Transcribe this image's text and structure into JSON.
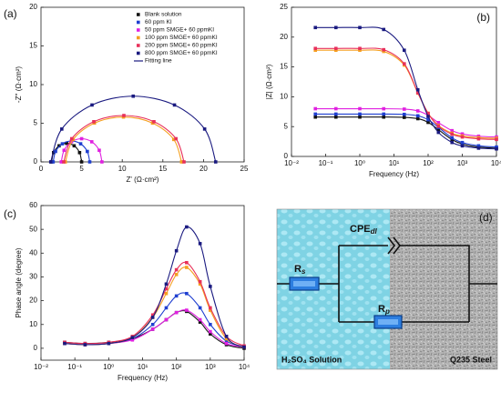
{
  "chart_data": [
    {
      "type": "scatter",
      "label": "(a)",
      "xlabel": "Z' (Ω·cm²)",
      "ylabel": "-Z'' (Ω·cm²)",
      "xlim": [
        0,
        25
      ],
      "ylim": [
        0,
        20
      ],
      "xticks": [
        0,
        5,
        10,
        15,
        20,
        25
      ],
      "yticks": [
        0,
        5,
        10,
        15,
        20
      ],
      "legend": "upper right",
      "fit_label": "Fitting line",
      "fit_color": "#1a1a80",
      "series": [
        {
          "name": "Blank solution",
          "color": "#111111",
          "x": [
            1.3,
            1.55,
            2.23,
            3.15,
            4.08,
            4.75,
            5.0
          ],
          "values": [
            0,
            1.2,
            2.08,
            2.4,
            2.08,
            1.2,
            0
          ]
        },
        {
          "name": "60 ppm KI",
          "color": "#1f3fd0",
          "x": [
            1.5,
            1.8,
            2.63,
            3.75,
            4.88,
            5.7,
            6.0
          ],
          "values": [
            0,
            1.35,
            2.34,
            2.7,
            2.34,
            1.35,
            0
          ]
        },
        {
          "name": "50 ppm SMGE+ 60 ppmKI",
          "color": "#e020e0",
          "x": [
            2.5,
            2.84,
            3.75,
            5.0,
            6.25,
            7.17,
            7.5
          ],
          "values": [
            0,
            1.5,
            2.6,
            3,
            2.6,
            1.5,
            0
          ]
        },
        {
          "name": "100 ppm SMGE+ 60 ppmKI",
          "color": "#f5a020",
          "x": [
            3.0,
            3.96,
            6.58,
            10.15,
            13.73,
            16.34,
            17.3
          ],
          "values": [
            0,
            2.9,
            5.02,
            5.8,
            5.02,
            2.9,
            0
          ]
        },
        {
          "name": "200 ppm SMGE+ 60 ppmKI",
          "color": "#e8305a",
          "x": [
            2.8,
            3.79,
            6.5,
            10.2,
            13.9,
            16.61,
            17.6
          ],
          "values": [
            0,
            3,
            5.2,
            6,
            5.2,
            3,
            0
          ]
        },
        {
          "name": "800 ppm SMGE+ 60 ppmKI",
          "color": "#1a1a80",
          "x": [
            1.2,
            2.56,
            6.28,
            11.35,
            16.43,
            20.14,
            21.5
          ],
          "values": [
            0,
            4.25,
            7.36,
            8.5,
            7.36,
            4.25,
            0
          ]
        }
      ]
    },
    {
      "type": "scatter",
      "label": "(b)",
      "xlabel": "Frequency (Hz)",
      "ylabel": "|Z| (Ω·cm²)",
      "xscale": "log",
      "xlim": [
        0.01,
        10000
      ],
      "ylim": [
        0,
        25
      ],
      "xticks": [
        {
          "value": 0.01,
          "label": "10⁻²"
        },
        {
          "value": 0.1,
          "label": "10⁻¹"
        },
        {
          "value": 1,
          "label": "10⁰"
        },
        {
          "value": 10,
          "label": "10¹"
        },
        {
          "value": 100,
          "label": "10²"
        },
        {
          "value": 1000,
          "label": "10³"
        },
        {
          "value": 10000,
          "label": "10⁴"
        }
      ],
      "yticks": [
        0,
        5,
        10,
        15,
        20,
        25
      ],
      "x": [
        0.05,
        0.2,
        1,
        5,
        20,
        50,
        100,
        200,
        500,
        1000,
        3000,
        10000
      ],
      "series": [
        {
          "color": "#111111",
          "values": [
            6.6,
            6.6,
            6.6,
            6.6,
            6.55,
            6.33,
            5.71,
            4.48,
            2.82,
            2.09,
            1.57,
            1.38
          ]
        },
        {
          "color": "#1f3fd0",
          "values": [
            7.1,
            7.1,
            7.1,
            7.1,
            7.05,
            6.81,
            6.16,
            4.86,
            3.11,
            2.33,
            1.78,
            1.58
          ]
        },
        {
          "color": "#e020e0",
          "values": [
            8.0,
            8.0,
            8.0,
            7.99,
            7.93,
            7.63,
            6.89,
            5.67,
            4.32,
            3.77,
            3.39,
            3.26
          ]
        },
        {
          "color": "#f5a020",
          "values": [
            17.8,
            17.8,
            17.8,
            17.6,
            15.31,
            10.61,
            7.25,
            5.2,
            3.89,
            3.44,
            3.15,
            3.04
          ]
        },
        {
          "color": "#e8305a",
          "values": [
            18.1,
            18.1,
            18.1,
            17.89,
            15.53,
            10.67,
            7.2,
            5.07,
            3.72,
            3.26,
            2.95,
            2.85
          ]
        },
        {
          "color": "#1a1a80",
          "values": [
            21.6,
            21.6,
            21.6,
            21.28,
            17.8,
            11.17,
            6.7,
            4.03,
            2.34,
            1.77,
            1.39,
            1.26
          ]
        }
      ]
    },
    {
      "type": "scatter",
      "label": "(c)",
      "xlabel": "Frequency (Hz)",
      "ylabel": "Phase angle (degree)",
      "xscale": "log",
      "xlim": [
        0.01,
        10000
      ],
      "ylim": [
        -5,
        60
      ],
      "xticks": [
        {
          "value": 0.01,
          "label": "10⁻²"
        },
        {
          "value": 0.1,
          "label": "10⁻¹"
        },
        {
          "value": 1,
          "label": "10⁰"
        },
        {
          "value": 10,
          "label": "10¹"
        },
        {
          "value": 100,
          "label": "10²"
        },
        {
          "value": 1000,
          "label": "10³"
        },
        {
          "value": 10000,
          "label": "10⁴"
        }
      ],
      "yticks": [
        0,
        10,
        20,
        30,
        40,
        50,
        60
      ],
      "x": [
        0.05,
        0.2,
        1,
        5,
        20,
        50,
        100,
        200,
        500,
        1000,
        3000,
        10000
      ],
      "series": [
        {
          "color": "#111111",
          "values": [
            2.5,
            2,
            2.5,
            4,
            8,
            12,
            15,
            15.5,
            11,
            6,
            1.5,
            0
          ]
        },
        {
          "color": "#1f3fd0",
          "values": [
            2,
            1.5,
            2,
            4,
            10,
            17,
            22,
            23,
            17,
            10,
            3,
            0.5
          ]
        },
        {
          "color": "#e020e0",
          "values": [
            2,
            1.5,
            2,
            3.5,
            8,
            12,
            15,
            16,
            12,
            7,
            2,
            0.5
          ]
        },
        {
          "color": "#f5a020",
          "values": [
            2,
            1.5,
            2,
            4.5,
            13,
            23,
            31,
            34,
            27,
            16,
            4,
            0.5
          ]
        },
        {
          "color": "#e8305a",
          "values": [
            2.5,
            2,
            2.5,
            5,
            14,
            25,
            33,
            36,
            28,
            17,
            5,
            1
          ]
        },
        {
          "color": "#1a1a80",
          "values": [
            2,
            1.5,
            2,
            4.5,
            13,
            27,
            41,
            51,
            44,
            26,
            5,
            0.5
          ]
        }
      ]
    }
  ],
  "diagram": {
    "label": "(d)",
    "cpe": {
      "text": "CPE",
      "sub": "dl"
    },
    "rs": {
      "text": "R",
      "sub": "s"
    },
    "rp": {
      "text": "R",
      "sub": "p"
    },
    "electrolyte": "H₂SO₄ Solution",
    "electrode": "Q235 Steel"
  }
}
